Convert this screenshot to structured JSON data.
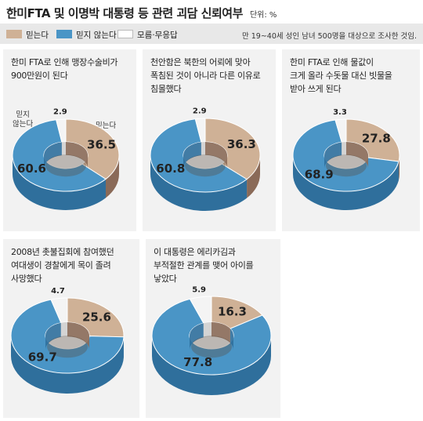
{
  "header": {
    "title": "한미FTA 및 이명박 대통령 등 관련 괴담 신뢰여부",
    "unit": "단위: %"
  },
  "legend": {
    "items": [
      {
        "label": "믿는다",
        "color": "#cfb196"
      },
      {
        "label": "믿지 않는다",
        "color": "#4a95c6"
      },
      {
        "label": "모름·무응답",
        "color": "#ffffff"
      }
    ],
    "note": "만 19~40세 성인 남녀 500명을 대상으로 조사한 것임."
  },
  "colors": {
    "believe_top": "#cfb196",
    "believe_side": "#8a6a58",
    "disbelieve_top": "#4a95c6",
    "disbelieve_side": "#2f6f9c",
    "unknown_top": "#f4f4f4",
    "unknown_side": "#d0d0d0",
    "panel_bg": "#f2f2f2"
  },
  "labels": {
    "disbelieve_callout": "믿지\n않는다",
    "believe_callout": "믿는다"
  },
  "chart_data": [
    {
      "type": "pie",
      "question": "한미 FTA로 인해 맹장수술비가\n900만원이 된다",
      "categories": [
        "믿는다",
        "믿지 않는다",
        "모름·무응답"
      ],
      "values": [
        36.5,
        60.6,
        2.9
      ]
    },
    {
      "type": "pie",
      "question": "천안함은 북한의 어뢰에 맞아\n폭침된 것이 아니라 다른 이유로\n침몰했다",
      "categories": [
        "믿는다",
        "믿지 않는다",
        "모름·무응답"
      ],
      "values": [
        36.3,
        60.8,
        2.9
      ]
    },
    {
      "type": "pie",
      "question": "한미 FTA로 인해 물값이\n크게 올라 수돗물 대신 빗물을\n받아 쓰게 된다",
      "categories": [
        "믿는다",
        "믿지 않는다",
        "모름·무응답"
      ],
      "values": [
        27.8,
        68.9,
        3.3
      ]
    },
    {
      "type": "pie",
      "question": "2008년 촛불집회에 참여했던\n여대생이 경찰에게 목이 졸려\n사망했다",
      "categories": [
        "믿는다",
        "믿지 않는다",
        "모름·무응답"
      ],
      "values": [
        25.6,
        69.7,
        4.7
      ]
    },
    {
      "type": "pie",
      "question": "이 대통령은 에리카김과\n부적절한 관계를 맺어 아이를\n낳았다",
      "categories": [
        "믿는다",
        "믿지 않는다",
        "모름·무응답"
      ],
      "values": [
        16.3,
        77.8,
        5.9
      ]
    }
  ]
}
